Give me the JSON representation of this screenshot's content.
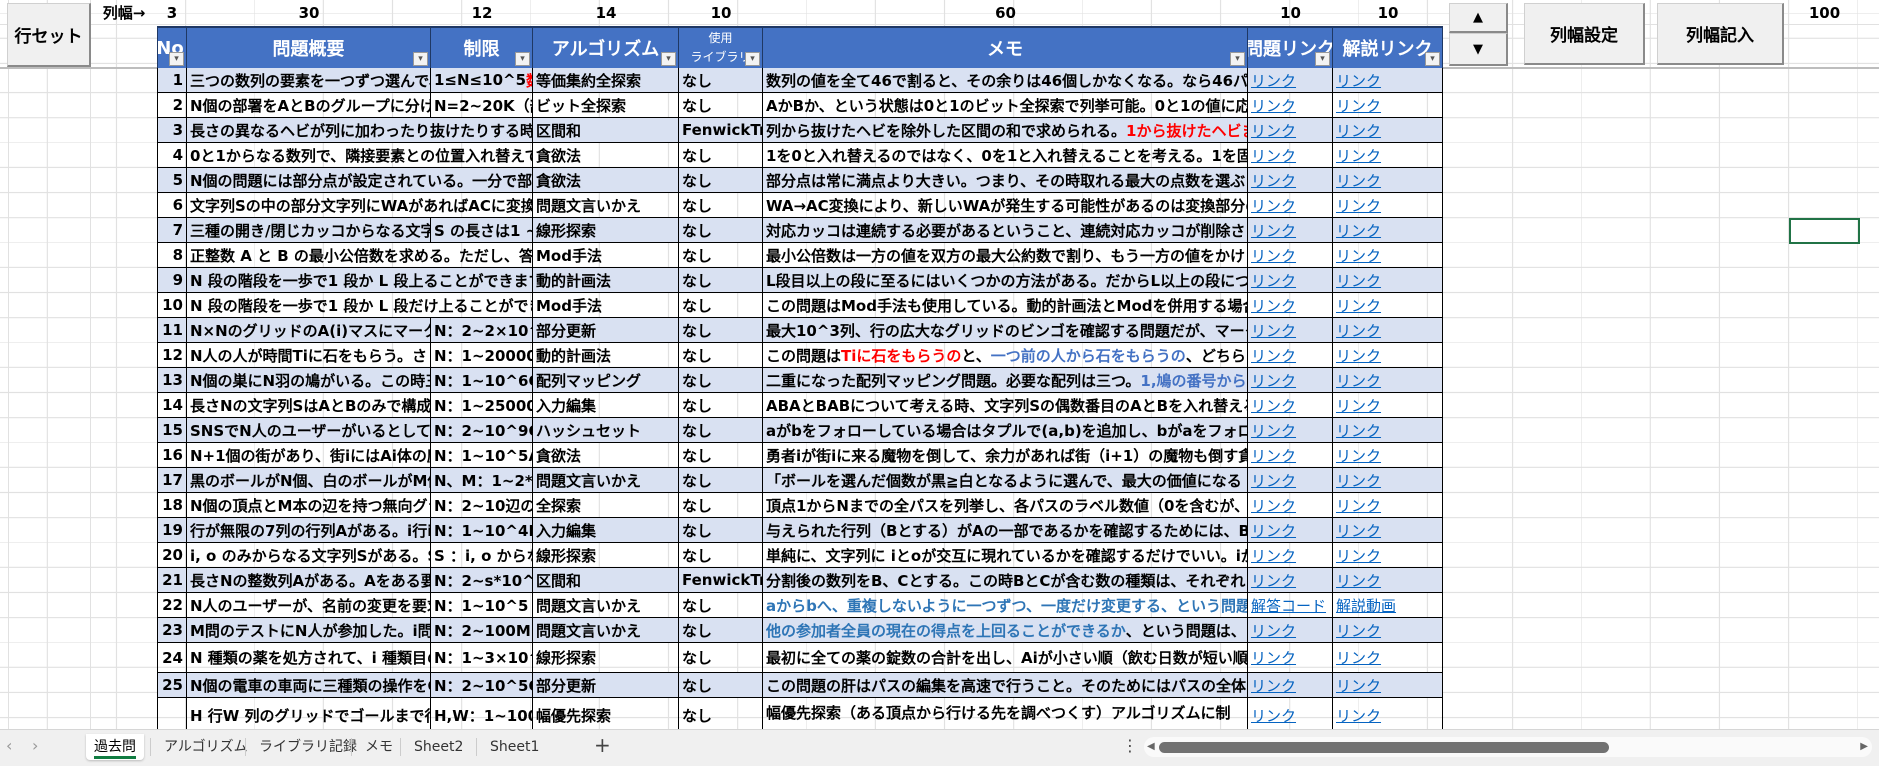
{
  "buttons": {
    "row_set": "行セット",
    "col_width_set": "列幅設定",
    "col_width_write": "列幅記入",
    "spin_up": "▲",
    "spin_down": "▼"
  },
  "width_row": {
    "label": "列幅→",
    "widths": [
      "3",
      "30",
      "12",
      "14",
      "10",
      "60",
      "10",
      "10"
    ],
    "extra": "100"
  },
  "headers": [
    "No",
    "問題概要",
    "制限",
    "アルゴリズム",
    "使用\nライブラリ",
    "メモ",
    "問題リンク",
    "解説リンク"
  ],
  "filter_icon": "dropdown-arrow-icon",
  "colors": {
    "header": "#4472C4",
    "band": "#D9E1F2",
    "link": "#0563C1",
    "red": "#FF0000",
    "blue": "#4472C4",
    "blue2": "#2E75B6",
    "active_tab": "#107C41",
    "selection": "#217346"
  },
  "rows": [
    {
      "no": "1",
      "problem": "三つの数列の要素を一つずつ選んで、",
      "limit": [
        {
          "t": "1≤N≤10^5"
        },
        {
          "t": "数列",
          "c": "red"
        }
      ],
      "algo": "等価集約全探索",
      "lib": "なし",
      "memo": [
        {
          "t": "数列の値を全て46で割ると、その余りは46個しかなくなる。なら46パタ"
        }
      ],
      "link1": "リンク",
      "link2": "リンク"
    },
    {
      "no": "2",
      "problem": "N個の部署をAとBのグループに分け",
      "limit": [
        {
          "t": "N=2~20K（部"
        }
      ],
      "algo": "ビット全探索",
      "lib": "なし",
      "memo": [
        {
          "t": "AかBか、という状態は0と1のビット全探索で列挙可能。0と1の値に応"
        }
      ],
      "link1": "リンク",
      "link2": "リンク"
    },
    {
      "no": "3",
      "problem": "長さの異なるヘビが列に加わったり抜けたりする時",
      "limit": [],
      "algo": "区間和",
      "lib": "FenwickTree",
      "memo": [
        {
          "t": "列から抜けたヘビを除外した区間の和で求められる。"
        },
        {
          "t": "1から抜けたヘビま",
          "c": "red"
        }
      ],
      "link1": "リンク",
      "link2": "リンク"
    },
    {
      "no": "4",
      "problem": "0と1からなる数列で、隣接要素との位置入れ替えで",
      "limit": [],
      "algo": "貪欲法",
      "lib": "なし",
      "memo": [
        {
          "t": "1を0と入れ替えるのではなく、0を1と入れ替えることを考える。1を固"
        }
      ],
      "link1": "リンク",
      "link2": "リンク"
    },
    {
      "no": "5",
      "problem": "N個の問題には部分点が設定されている。一分で部",
      "limit": [],
      "algo": "貪欲法",
      "lib": "なし",
      "memo": [
        {
          "t": "部分点は常に満点より大きい。つまり、その時取れる最大の点数を選ぶ"
        }
      ],
      "link1": "リンク",
      "link2": "リンク"
    },
    {
      "no": "6",
      "problem": "文字列Sの中の部分文字列にWAがあればACに変換",
      "limit": [],
      "algo": "問題文言いかえ",
      "lib": "なし",
      "memo": [
        {
          "t": "WA→AC変換により、新しいWAが発生する可能性があるのは変換部分の"
        }
      ],
      "link1": "リンク",
      "link2": "リンク"
    },
    {
      "no": "7",
      "problem": "三種の開き/閉じカッコからなる文字",
      "limit": [
        {
          "t": "S の長さは1 ~"
        }
      ],
      "algo": "線形探索",
      "lib": "なし",
      "memo": [
        {
          "t": "対応カッコは連続する必要があるということ、連続対応カッコが削除さ"
        }
      ],
      "link1": "リンク",
      "link2": "リンク"
    },
    {
      "no": "8",
      "problem": "正整数 A と B の最小公倍数を求める。ただし、答え",
      "limit": [],
      "algo": "Mod手法",
      "lib": "なし",
      "memo": [
        {
          "t": "最小公倍数は一方の値を双方の最大公約数で割り、もう一方の値をかけ"
        }
      ],
      "link1": "リンク",
      "link2": "リンク"
    },
    {
      "no": "9",
      "problem": "N 段の階段を一歩で1 段か L 段上ることができます",
      "limit": [],
      "algo": "動的計画法",
      "lib": "なし",
      "memo": [
        {
          "t": "L段目以上の段に至るにはいくつかの方法がある。だからL以上の段につ"
        }
      ],
      "link1": "リンク",
      "link2": "リンク"
    },
    {
      "no": "10",
      "problem": "N 段の階段を一歩で1 段か L 段だけ上ることができ",
      "limit": [],
      "algo": "Mod手法",
      "lib": "なし",
      "memo": [
        {
          "t": "この問題はMod手法も使用している。動的計画法とModを併用する場合"
        }
      ],
      "link1": "リンク",
      "link2": "リンク"
    },
    {
      "no": "11",
      "problem": "N×NのグリッドのA(i)マスにマーク",
      "limit": [
        {
          "t": "N：2~2×10^"
        }
      ],
      "algo": "部分更新",
      "lib": "なし",
      "memo": [
        {
          "t": "最大10^3列、行の広大なグリッドのビンゴを確認する問題だが、マーク"
        }
      ],
      "link1": "リンク",
      "link2": "リンク"
    },
    {
      "no": "12",
      "problem": "N人の人が時間Tiに石をもらう。さ",
      "limit": [
        {
          "t": "N：1~200000"
        }
      ],
      "algo": "動的計画法",
      "lib": "なし",
      "memo": [
        {
          "t": "この問題は"
        },
        {
          "t": "Tiに石をもらうの",
          "c": "red"
        },
        {
          "t": "と、"
        },
        {
          "t": "一つ前の人から石をもらうの",
          "c": "blue"
        },
        {
          "t": "、どちら"
        }
      ],
      "link1": "リンク",
      "link2": "リンク"
    },
    {
      "no": "13",
      "problem": "N個の巣にN羽の鳩がいる。この時三",
      "limit": [
        {
          "t": "N：1~10^6Q"
        }
      ],
      "algo": "配列マッピング",
      "lib": "なし",
      "memo": [
        {
          "t": "二重になった配列マッピング問題。必要な配列は三つ。"
        },
        {
          "t": "1,鳩の番号から",
          "c": "blue"
        }
      ],
      "link1": "リンク",
      "link2": "リンク"
    },
    {
      "no": "14",
      "problem": "長さNの文字列SはAとBのみで構成",
      "limit": [
        {
          "t": "N：1~250000"
        }
      ],
      "algo": "入力編集",
      "lib": "なし",
      "memo": [
        {
          "t": "ABAとBABについて考える時、文字列Sの偶数番目のAとBを入れ替える"
        }
      ],
      "link1": "リンク",
      "link2": "リンク"
    },
    {
      "no": "15",
      "problem": "SNSでN人のユーザーがいるとして、",
      "limit": [
        {
          "t": "N：2~10^9Q"
        }
      ],
      "algo": "ハッシュセット",
      "lib": "なし",
      "memo": [
        {
          "t": "aがbをフォローしている場合はタプルで(a,b)を追加し、bがaをフォロー"
        }
      ],
      "link1": "リンク",
      "link2": "リンク"
    },
    {
      "no": "16",
      "problem": "N+1個の街があり、街iにはAi体の魔",
      "limit": [
        {
          "t": "N：1~10^5Ai"
        }
      ],
      "algo": "貪欲法",
      "lib": "なし",
      "memo": [
        {
          "t": "勇者iが街iに来る魔物を倒して、余力があれば街（i+1）の魔物も倒す貪"
        }
      ],
      "link1": "リンク",
      "link2": "リンク"
    },
    {
      "no": "17",
      "problem": "黒のボールがN個、白のボールがM個",
      "limit": [
        {
          "t": "N、M：1~2*("
        }
      ],
      "algo": "問題文言いかえ",
      "lib": "なし",
      "memo": [
        {
          "t": "「ボールを選んだ個数が黒≧白となるように選んで、最大の価値になる"
        }
      ],
      "link1": "リンク",
      "link2": "リンク"
    },
    {
      "no": "18",
      "problem": "N個の頂点とM本の辺を持つ無向グラ",
      "limit": [
        {
          "t": "N：2~10辺の"
        }
      ],
      "algo": "全探索",
      "lib": "なし",
      "memo": [
        {
          "t": "頂点1からNまでの全パスを列挙し、各パスのラベル数値（0を含むが、"
        }
      ],
      "link1": "リンク",
      "link2": "リンク"
    },
    {
      "no": "19",
      "problem": "行が無限の7列の行列Aがある。i行i",
      "limit": [
        {
          "t": "N：1~10^4M"
        }
      ],
      "algo": "入力編集",
      "lib": "なし",
      "memo": [
        {
          "t": "与えられた行列（Bとする）がAの一部であるかを確認するためには、B"
        }
      ],
      "link1": "リンク",
      "link2": "リンク"
    },
    {
      "no": "20",
      "problem": "i, o のみからなる文字列Sがある。S",
      "limit": [
        {
          "t": "S ：i, o からな"
        }
      ],
      "algo": "線形探索",
      "lib": "なし",
      "memo": [
        {
          "t": "単純に、文字列に iとoが交互に現れているかを確認するだけでいい。iが"
        }
      ],
      "link1": "リンク",
      "link2": "リンク"
    },
    {
      "no": "21",
      "problem": "長さNの整数列Aがある。Aをある要",
      "limit": [
        {
          "t": "N：2~s*10^5"
        }
      ],
      "algo": "区間和",
      "lib": "FenwickTree",
      "memo": [
        {
          "t": "分割後の数列をB、Cとする。この時BとCが含む数の種類は、それぞれ"
        }
      ],
      "link1": "リンク",
      "link2": "リンク"
    },
    {
      "no": "22",
      "problem": "N人のユーザーが、名前の変更を要求",
      "limit": [
        {
          "t": "N：1~10^5"
        }
      ],
      "algo": "問題文言いかえ",
      "lib": "なし",
      "memo": [
        {
          "t": "aからbへ、重複しないように一つずつ、一度だけ変更する、という問題",
          "c": "blue2"
        }
      ],
      "link1": "解答コード",
      "link2": "解説動画"
    },
    {
      "no": "23",
      "problem": "M問のテストにN人が参加した。i問",
      "limit": [
        {
          "t": "N：2~100M："
        }
      ],
      "algo": "問題文言いかえ",
      "lib": "なし",
      "memo": [
        {
          "t": "他の参加者全員の現在の得点を上回ることができるか",
          "c": "blue2"
        },
        {
          "t": "、という問題は、"
        }
      ],
      "link1": "リンク",
      "link2": "リンク"
    },
    {
      "no": "24",
      "problem": "N 種類の薬を処方されて、i 種類目の",
      "limit": [
        {
          "t": "N：1~3×10^"
        }
      ],
      "algo": "線形探索",
      "lib": "なし",
      "memo": [
        {
          "t": "最初に全ての薬の錠数の合計を出し、Aiが小さい順（飲む日数が短い順）"
        }
      ],
      "link1": "リンク",
      "link2": "リンク"
    },
    {
      "no": "25",
      "problem": "N個の電車の車両に三種類の操作をQ",
      "limit": [
        {
          "t": "N：2~10^5Q"
        }
      ],
      "algo": "部分更新",
      "lib": "なし",
      "memo": [
        {
          "t": "この問題の肝はパスの編集を高速で行うこと。そのためにはパスの全体"
        }
      ],
      "link1": "リンク",
      "link2": "リンク"
    },
    {
      "no": "",
      "problem": "H 行W 列のグリッドでゴールまで行",
      "limit": [
        {
          "t": "H,W：1~1000"
        }
      ],
      "algo": "幅優先探索",
      "lib": "なし",
      "memo": [
        {
          "t": "幅優先探索（ある頂点から行ける先を調べつくす）アルゴリズムに制限を加えたもの"
        }
      ],
      "link1": "リンク",
      "link2": "リンク"
    }
  ],
  "tabs": [
    "過去問",
    "アルゴリズム",
    "ライブラリ記録",
    "メモ",
    "Sheet2",
    "Sheet1"
  ],
  "active_tab": 0,
  "add_tab": "+"
}
